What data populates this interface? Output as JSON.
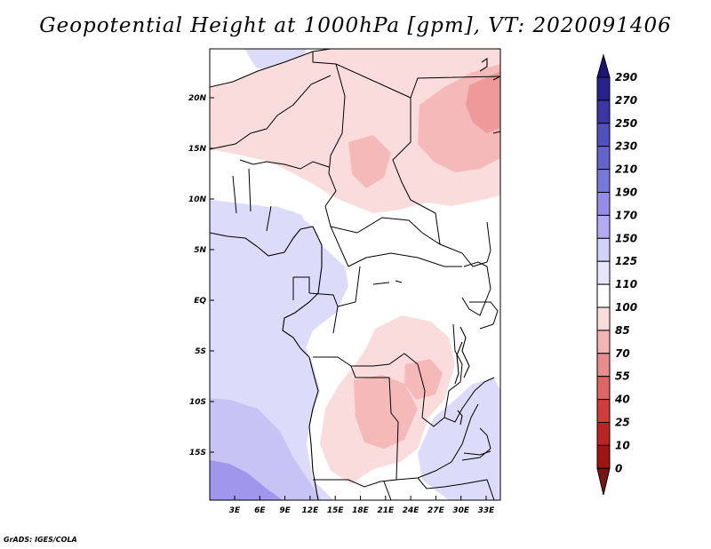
{
  "title": "Geopotential Height at 1000hPa [gpm], VT: 2020091406",
  "credit": "GrADS: IGES/COLA",
  "map": {
    "lat_labels": [
      "20N",
      "15N",
      "10N",
      "5N",
      "EQ",
      "5S",
      "10S",
      "15S"
    ],
    "lon_labels": [
      "3E",
      "6E",
      "9E",
      "12E",
      "15E",
      "18E",
      "21E",
      "24E",
      "27E",
      "30E",
      "33E"
    ]
  },
  "colorbar": {
    "levels": [
      "290",
      "270",
      "250",
      "230",
      "210",
      "190",
      "170",
      "150",
      "125",
      "110",
      "100",
      "85",
      "70",
      "55",
      "40",
      "25",
      "10",
      "0"
    ],
    "colors": [
      "#1e1478",
      "#28238c",
      "#3c37a5",
      "#5050be",
      "#6464cd",
      "#7878dc",
      "#968ceb",
      "#b4aaf5",
      "#d2d2f8",
      "#e6e6fa",
      "#ffffff",
      "#fadcdc",
      "#f5b4b4",
      "#eb8c8c",
      "#e16464",
      "#d23c3c",
      "#be2323",
      "#a01414",
      "#781414"
    ]
  },
  "colors": {
    "white": "#ffffff",
    "light_blue": "#dcdcfa",
    "mid_blue": "#c8c3f5",
    "deep_blue": "#a096eb",
    "light_red": "#fadcdc",
    "mid_red": "#f5b9b9",
    "deep_red": "#ef9a9a"
  }
}
